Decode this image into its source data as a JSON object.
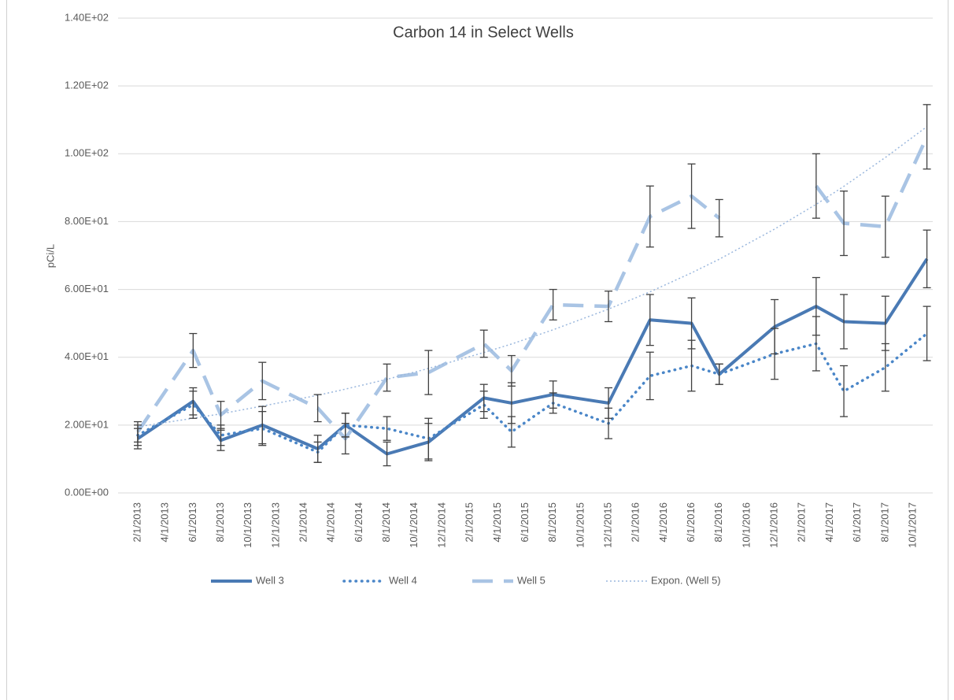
{
  "chart_data": {
    "type": "line",
    "title": "Carbon 14 in Select Wells",
    "y_label": "pCi/L",
    "x": [
      "2/1/2013",
      "6/1/2013",
      "8/1/2013",
      "11/1/2013",
      "3/1/2014",
      "5/1/2014",
      "8/1/2014",
      "11/1/2014",
      "3/1/2015",
      "5/1/2015",
      "8/1/2015",
      "12/1/2015",
      "3/1/2016",
      "6/1/2016",
      "8/1/2016",
      "12/1/2016",
      "3/1/2017",
      "5/1/2017",
      "8/1/2017",
      "11/1/2017"
    ],
    "xlim": [
      "1/1/2013",
      "11/1/2017"
    ],
    "xticks": [
      "2/1/2013",
      "4/1/2013",
      "6/1/2013",
      "8/1/2013",
      "10/1/2013",
      "12/1/2013",
      "2/1/2014",
      "4/1/2014",
      "6/1/2014",
      "8/1/2014",
      "10/1/2014",
      "12/1/2014",
      "2/1/2015",
      "4/1/2015",
      "6/1/2015",
      "8/1/2015",
      "10/1/2015",
      "12/1/2015",
      "2/1/2016",
      "4/1/2016",
      "6/1/2016",
      "8/1/2016",
      "10/1/2016",
      "12/1/2016",
      "2/1/2017",
      "4/1/2017",
      "6/1/2017",
      "8/1/2017",
      "10/1/2017"
    ],
    "ylim": [
      0,
      140
    ],
    "yticks": [
      {
        "value": 0,
        "label": "0.00E+00"
      },
      {
        "value": 20,
        "label": "2.00E+01"
      },
      {
        "value": 40,
        "label": "4.00E+01"
      },
      {
        "value": 60,
        "label": "6.00E+01"
      },
      {
        "value": 80,
        "label": "8.00E+01"
      },
      {
        "value": 100,
        "label": "1.00E+02"
      },
      {
        "value": 120,
        "label": "1.20E+02"
      },
      {
        "value": 140,
        "label": "1.40E+02"
      }
    ],
    "grid": true,
    "legend": "bottom",
    "series": [
      {
        "name": "Well 3",
        "color": "#4a7ab4",
        "style": "solid",
        "values": [
          16,
          27,
          15.5,
          20,
          13,
          20,
          11.5,
          15,
          28,
          26.5,
          29,
          26.5,
          51,
          50,
          35,
          49,
          55,
          50.5,
          50,
          69
        ],
        "errors": [
          3,
          4,
          3,
          5.5,
          4,
          3.5,
          3.5,
          5.5,
          4,
          6,
          4,
          4.5,
          7.5,
          7.5,
          3,
          8,
          8.5,
          8,
          8,
          8.5
        ]
      },
      {
        "name": "Well 4",
        "color": "#4a86c8",
        "style": "dotted",
        "values": [
          17,
          26,
          17,
          19,
          12,
          20,
          19,
          16,
          26,
          18,
          26.5,
          20.5,
          34.5,
          37.5,
          35,
          41,
          44,
          30,
          37,
          47
        ],
        "errors": [
          3,
          4,
          3,
          5,
          3,
          3.5,
          3.5,
          6,
          4,
          4.5,
          3,
          4.5,
          7,
          7.5,
          3,
          7.5,
          8,
          7.5,
          7,
          8
        ]
      },
      {
        "name": "Well 5",
        "color": "#a9c4e4",
        "style": "dashed",
        "values": [
          18,
          42,
          23,
          33,
          25,
          16,
          34,
          35.5,
          44,
          36,
          55.5,
          55,
          81.5,
          87.5,
          81,
          null,
          90.5,
          79.5,
          78.5,
          105
        ],
        "errors": [
          3,
          5,
          4,
          5.5,
          4,
          4.5,
          4,
          6.5,
          4,
          4.5,
          4.5,
          4.5,
          9,
          9.5,
          5.5,
          null,
          9.5,
          9.5,
          9,
          9.5
        ]
      },
      {
        "name": "Expon. (Well 5)",
        "color": "#9ab7dd",
        "style": "trendline",
        "values": [
          19.5,
          22.0,
          23.3,
          25.6,
          28.8,
          30.6,
          33.5,
          36.7,
          41.4,
          43.9,
          48.1,
          54.2,
          59.3,
          64.9,
          68.9,
          77.8,
          85.1,
          90.4,
          98.9,
          108.0
        ]
      }
    ]
  }
}
